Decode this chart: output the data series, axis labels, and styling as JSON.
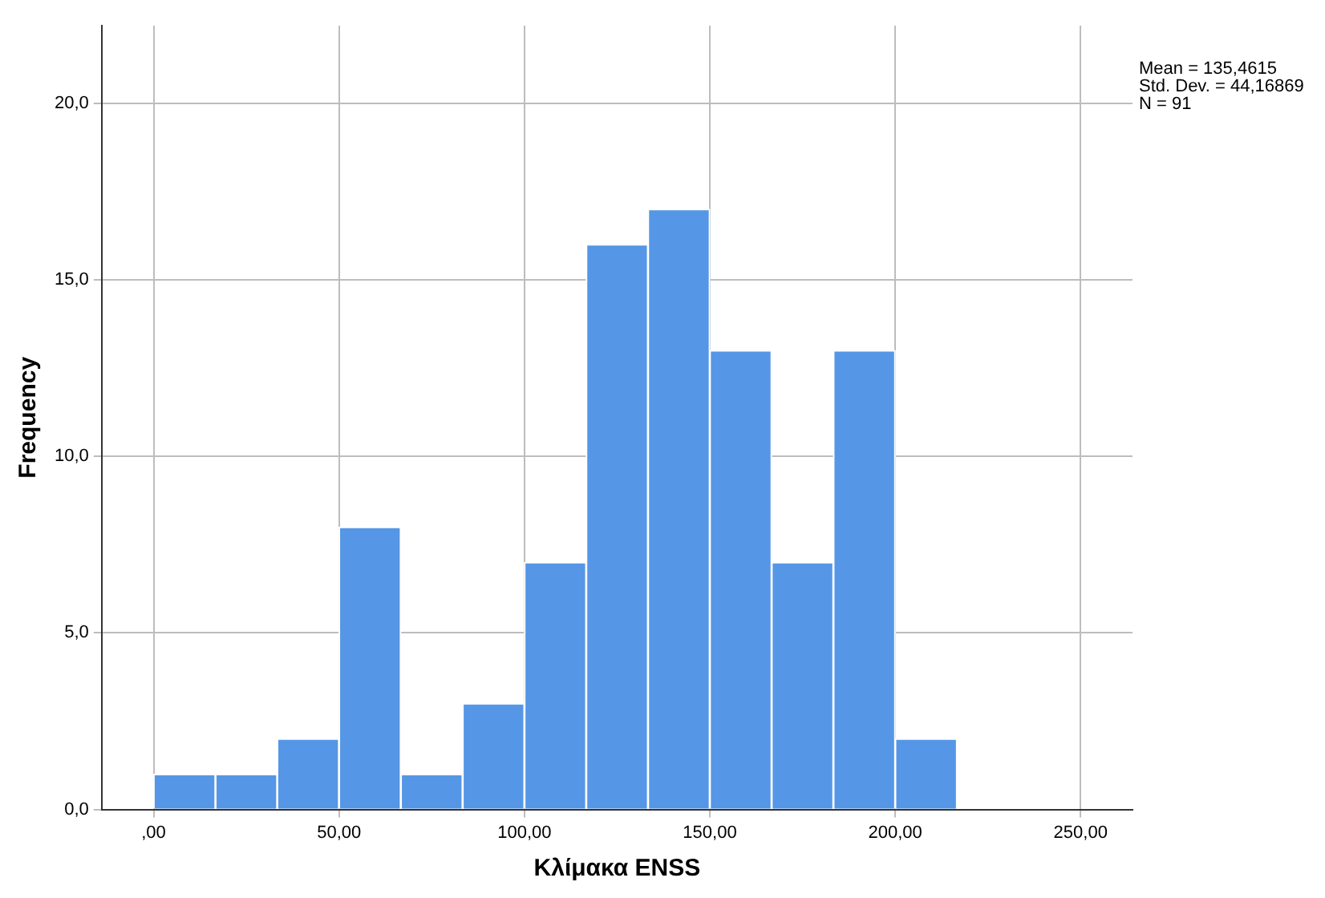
{
  "chart_data": {
    "type": "histogram",
    "xlabel": "Κλίμακα ENSS",
    "ylabel": "Frequency",
    "bins": [
      0,
      16.67,
      33.33,
      50,
      66.67,
      83.33,
      100,
      116.67,
      133.33,
      150,
      166.67,
      183.33,
      200,
      216.67
    ],
    "values": [
      1,
      1,
      2,
      8,
      1,
      3,
      7,
      16,
      17,
      13,
      7,
      13,
      2
    ],
    "color": "#5596e6",
    "xlim": [
      -14,
      264
    ],
    "xticks": [
      {
        "value": 0,
        "label": ",00"
      },
      {
        "value": 50,
        "label": "50,00"
      },
      {
        "value": 100,
        "label": "100,00"
      },
      {
        "value": 150,
        "label": "150,00"
      },
      {
        "value": 200,
        "label": "200,00"
      },
      {
        "value": 250,
        "label": "250,00"
      }
    ],
    "ylim": [
      0,
      22.2
    ],
    "yticks": [
      {
        "value": 0,
        "label": "0,0"
      },
      {
        "value": 5,
        "label": "5,0"
      },
      {
        "value": 10,
        "label": "10,0"
      },
      {
        "value": 15,
        "label": "15,0"
      },
      {
        "value": 20,
        "label": "20,0"
      }
    ],
    "grid": true,
    "annotations": [
      "Mean = 135,4615",
      "Std. Dev. = 44,16869",
      "N = 91"
    ]
  }
}
